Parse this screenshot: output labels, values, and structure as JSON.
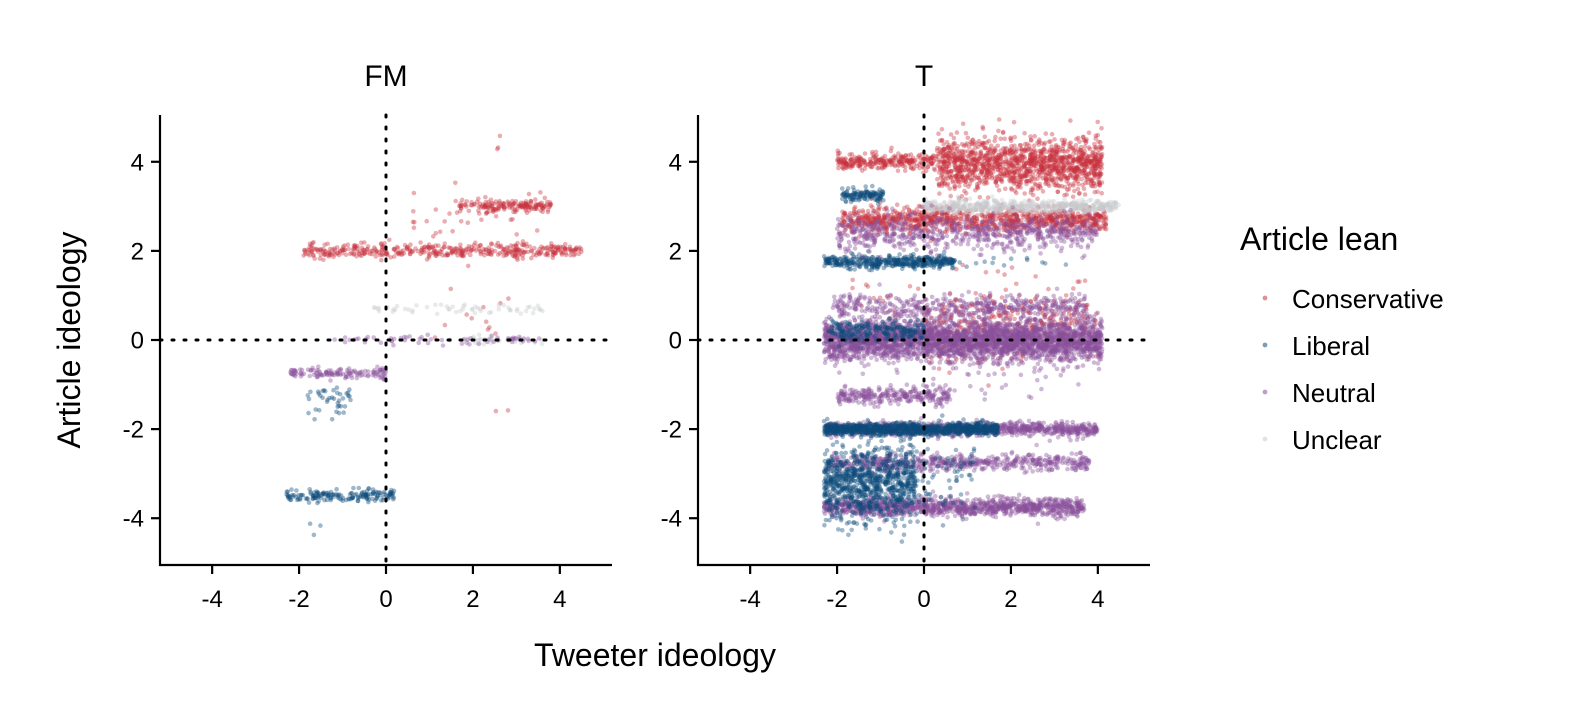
{
  "colors": {
    "Conservative": "#c8333f",
    "Liberal": "#0c4a7a",
    "Neutral": "#8a4f9c",
    "Unclear": "#c9cbce"
  },
  "chart_data": {
    "type": "scatter",
    "xlabel": "Tweeter ideology",
    "ylabel": "Article ideology",
    "xlim": [
      -5.2,
      5.2
    ],
    "ylim": [
      -5.05,
      5.05
    ],
    "xticks": [
      -4,
      -2,
      0,
      2,
      4
    ],
    "yticks": [
      -4,
      -2,
      0,
      2,
      4
    ],
    "xtick_labels": [
      "-4",
      "-2",
      "0",
      "2",
      "4"
    ],
    "ytick_labels": [
      "-4",
      "-2",
      "0",
      "2",
      "4"
    ],
    "reference_lines": {
      "x": 0,
      "y": 0,
      "style": "dotted"
    },
    "grid": false,
    "legend": {
      "title": "Article lean",
      "position": "right",
      "entries": [
        "Conservative",
        "Liberal",
        "Neutral",
        "Unclear"
      ]
    },
    "facets": [
      {
        "title": "FM",
        "clusters": [
          {
            "lean": "Conservative",
            "y": 2.0,
            "x_range": [
              -1.9,
              4.5
            ],
            "n": 420,
            "y_jitter": 0.08
          },
          {
            "lean": "Conservative",
            "y": 3.0,
            "x_range": [
              1.6,
              3.8
            ],
            "n": 160,
            "y_jitter": 0.07
          },
          {
            "lean": "Conservative",
            "y": 2.6,
            "x_range": [
              0.5,
              3.6
            ],
            "n": 45,
            "y_jitter": 0.45
          },
          {
            "lean": "Conservative",
            "y": 4.4,
            "x_range": [
              1.4,
              3.2
            ],
            "n": 3,
            "y_jitter": 0.15
          },
          {
            "lean": "Conservative",
            "y": 0.6,
            "x_range": [
              1.0,
              3.7
            ],
            "n": 12,
            "y_jitter": 0.35
          },
          {
            "lean": "Conservative",
            "y": -1.6,
            "x_range": [
              2.5,
              3.8
            ],
            "n": 2,
            "y_jitter": 0.02
          },
          {
            "lean": "Unclear",
            "y": 0.7,
            "x_range": [
              -0.3,
              3.6
            ],
            "n": 55,
            "y_jitter": 0.06
          },
          {
            "lean": "Unclear",
            "y": 0.0,
            "x_range": [
              1.8,
              3.6
            ],
            "n": 35,
            "y_jitter": 0.05
          },
          {
            "lean": "Neutral",
            "y": 0.0,
            "x_range": [
              -1.2,
              3.6
            ],
            "n": 60,
            "y_jitter": 0.05
          },
          {
            "lean": "Neutral",
            "y": -0.75,
            "x_range": [
              -2.2,
              0.0
            ],
            "n": 130,
            "y_jitter": 0.06
          },
          {
            "lean": "Liberal",
            "y": -1.35,
            "x_range": [
              -1.8,
              -0.8
            ],
            "n": 40,
            "y_jitter": 0.2
          },
          {
            "lean": "Liberal",
            "y": -3.5,
            "x_range": [
              -2.3,
              0.2
            ],
            "n": 170,
            "y_jitter": 0.07
          },
          {
            "lean": "Liberal",
            "y": -4.2,
            "x_range": [
              -1.8,
              -1.3
            ],
            "n": 3,
            "y_jitter": 0.08
          }
        ]
      },
      {
        "title": "T",
        "clusters": [
          {
            "lean": "Conservative",
            "y": 4.0,
            "x_range": [
              -2.0,
              0.3
            ],
            "n": 260,
            "y_jitter": 0.09
          },
          {
            "lean": "Conservative",
            "y": 3.95,
            "x_range": [
              0.3,
              4.1
            ],
            "n": 1300,
            "y_jitter": 0.3
          },
          {
            "lean": "Conservative",
            "y": 2.7,
            "x_range": [
              -1.9,
              4.2
            ],
            "n": 950,
            "y_jitter": 0.14
          },
          {
            "lean": "Conservative",
            "y": 0.55,
            "x_range": [
              0.0,
              3.8
            ],
            "n": 170,
            "y_jitter": 0.22
          },
          {
            "lean": "Conservative",
            "y": 0.0,
            "x_range": [
              0.0,
              4.0
            ],
            "n": 150,
            "y_jitter": 0.35
          },
          {
            "lean": "Conservative",
            "y": 1.0,
            "x_range": [
              -1.8,
              3.8
            ],
            "n": 40,
            "y_jitter": 0.3
          },
          {
            "lean": "Unclear",
            "y": 3.0,
            "x_range": [
              0.0,
              4.5
            ],
            "n": 500,
            "y_jitter": 0.07
          },
          {
            "lean": "Liberal",
            "y": 3.25,
            "x_range": [
              -1.9,
              -0.9
            ],
            "n": 120,
            "y_jitter": 0.08
          },
          {
            "lean": "Liberal",
            "y": 1.75,
            "x_range": [
              -2.3,
              0.7
            ],
            "n": 420,
            "y_jitter": 0.07
          },
          {
            "lean": "Liberal",
            "y": 1.75,
            "x_range": [
              0.7,
              3.4
            ],
            "n": 14,
            "y_jitter": 0.06
          },
          {
            "lean": "Neutral",
            "y": 2.4,
            "x_range": [
              -2.0,
              4.0
            ],
            "n": 650,
            "y_jitter": 0.2
          },
          {
            "lean": "Neutral",
            "y": 0.75,
            "x_range": [
              -2.1,
              3.7
            ],
            "n": 450,
            "y_jitter": 0.13
          },
          {
            "lean": "Neutral",
            "y": 0.0,
            "x_range": [
              -2.3,
              4.1
            ],
            "n": 3200,
            "y_jitter": 0.22
          },
          {
            "lean": "Liberal",
            "y": 0.2,
            "x_range": [
              -2.2,
              0.0
            ],
            "n": 220,
            "y_jitter": 0.12
          },
          {
            "lean": "Neutral",
            "y": -1.25,
            "x_range": [
              -2.0,
              0.6
            ],
            "n": 260,
            "y_jitter": 0.1
          },
          {
            "lean": "Neutral",
            "y": -0.8,
            "x_range": [
              -1.5,
              3.6
            ],
            "n": 60,
            "y_jitter": 0.5
          },
          {
            "lean": "Neutral",
            "y": -2.0,
            "x_range": [
              -2.3,
              4.0
            ],
            "n": 1000,
            "y_jitter": 0.07
          },
          {
            "lean": "Liberal",
            "y": -2.0,
            "x_range": [
              -2.3,
              1.7
            ],
            "n": 1000,
            "y_jitter": 0.07
          },
          {
            "lean": "Neutral",
            "y": -2.75,
            "x_range": [
              -2.2,
              3.8
            ],
            "n": 550,
            "y_jitter": 0.1
          },
          {
            "lean": "Neutral",
            "y": -3.75,
            "x_range": [
              -2.3,
              3.7
            ],
            "n": 1100,
            "y_jitter": 0.1
          },
          {
            "lean": "Liberal",
            "y": -3.2,
            "x_range": [
              -2.3,
              -0.2
            ],
            "n": 900,
            "y_jitter": 0.4
          },
          {
            "lean": "Liberal",
            "y": -3.1,
            "x_range": [
              -0.2,
              1.2
            ],
            "n": 70,
            "y_jitter": 0.45
          },
          {
            "lean": "Liberal",
            "y": -4.2,
            "x_range": [
              -1.7,
              -1.3
            ],
            "n": 4,
            "y_jitter": 0.05
          }
        ]
      }
    ]
  }
}
